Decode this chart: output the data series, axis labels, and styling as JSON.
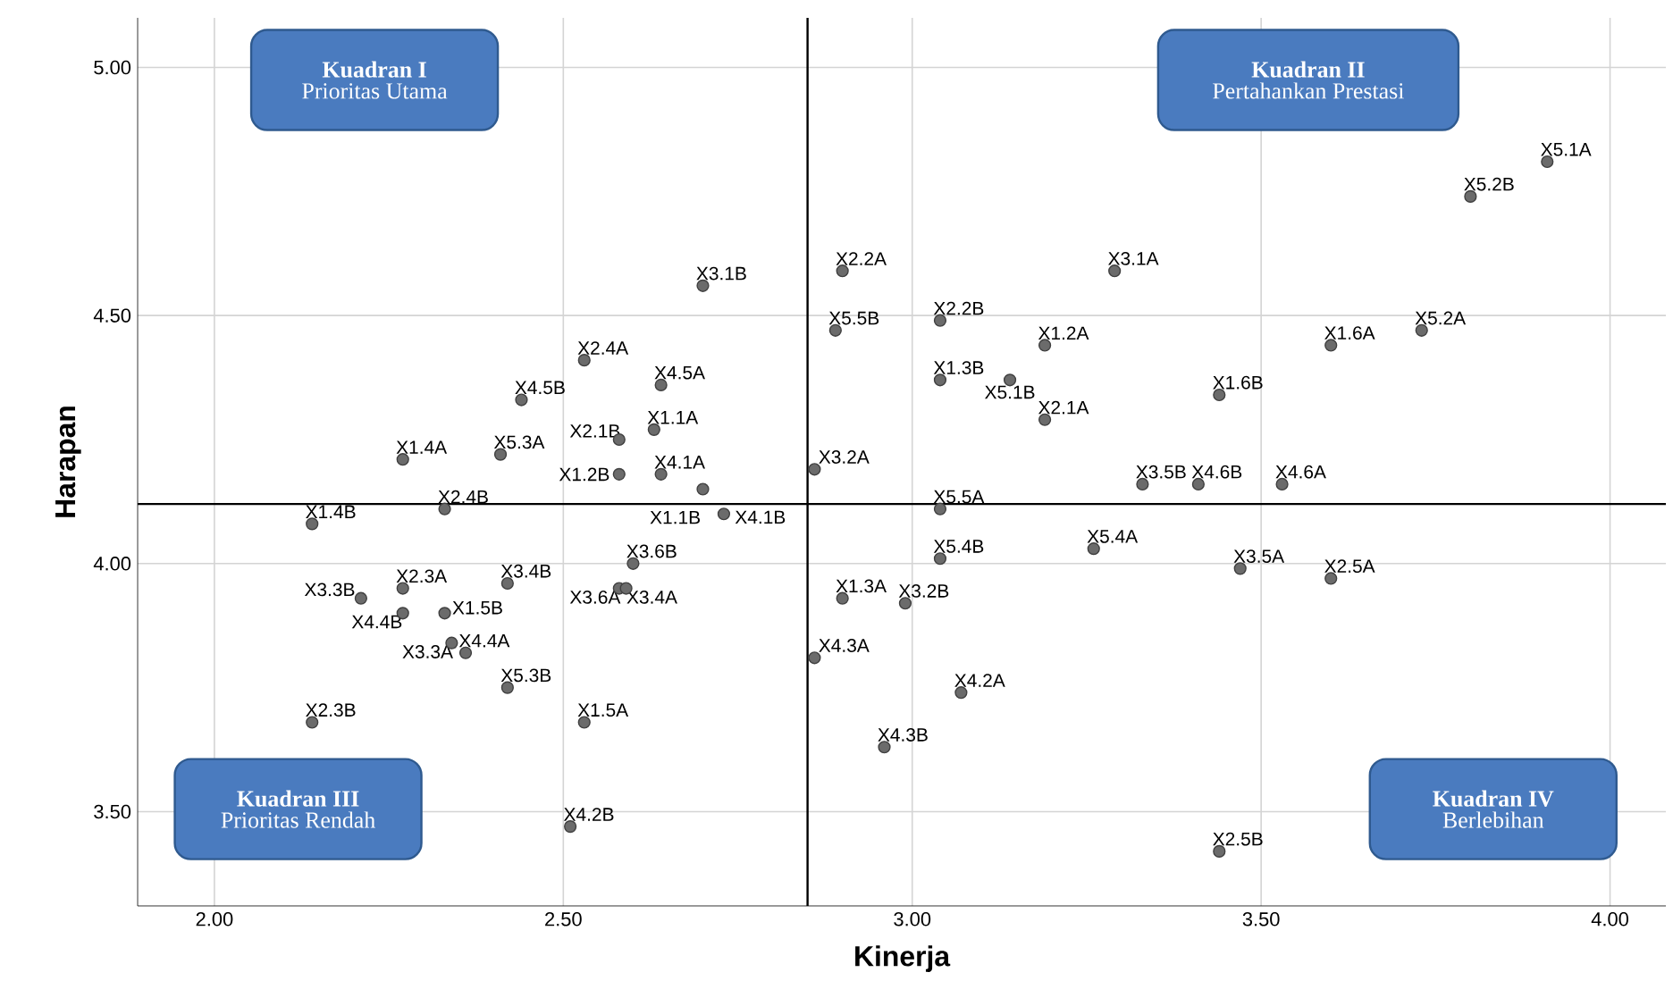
{
  "chart_data": {
    "type": "scatter",
    "xlabel": "Kinerja",
    "ylabel": "Harapan",
    "xlim": [
      1.89,
      4.08
    ],
    "ylim": [
      3.31,
      5.1
    ],
    "xticks": [
      {
        "value": 2,
        "label": "2.00"
      },
      {
        "value": 2.5,
        "label": "2.50"
      },
      {
        "value": 3,
        "label": "3.00"
      },
      {
        "value": 3.5,
        "label": "3.50"
      },
      {
        "value": 4,
        "label": "4.00"
      }
    ],
    "yticks": [
      {
        "value": 3.5,
        "label": "3.50"
      },
      {
        "value": 4,
        "label": "4.00"
      },
      {
        "value": 4.5,
        "label": "4.50"
      },
      {
        "value": 5,
        "label": "5.00"
      }
    ],
    "grid": true,
    "ref_lines": [
      {
        "axis": "x",
        "value": 2.85,
        "color": "#000000"
      },
      {
        "axis": "y",
        "value": 4.12,
        "color": "#000000"
      }
    ],
    "series": [
      {
        "color": "#6b6b6b",
        "x": [
          3.91,
          3.8,
          2.7,
          2.9,
          3.29,
          2.89,
          3.04,
          3.19,
          3.6,
          3.73,
          2.53,
          2.64,
          2.44,
          2.63,
          2.58,
          2.58,
          2.64,
          2.7,
          2.73,
          2.27,
          2.41,
          2.14,
          2.33,
          2.6,
          2.21,
          2.27,
          2.42,
          2.58,
          2.59,
          2.27,
          2.33,
          2.34,
          2.36,
          2.42,
          2.14,
          2.53,
          2.51,
          2.86,
          3.04,
          3.14,
          3.19,
          3.44,
          3.33,
          3.41,
          3.53,
          3.04,
          3.04,
          3.26,
          3.47,
          3.6,
          2.9,
          2.99,
          2.86,
          3.07,
          2.96,
          3.44
        ],
        "values": [
          4.81,
          4.74,
          4.56,
          4.59,
          4.59,
          4.47,
          4.49,
          4.44,
          4.44,
          4.47,
          4.41,
          4.36,
          4.33,
          4.27,
          4.25,
          4.18,
          4.18,
          4.15,
          4.1,
          4.21,
          4.22,
          4.08,
          4.11,
          4.0,
          3.93,
          3.95,
          3.96,
          3.95,
          3.95,
          3.9,
          3.9,
          3.84,
          3.82,
          3.75,
          3.68,
          3.68,
          3.47,
          4.19,
          4.37,
          4.37,
          4.29,
          4.34,
          4.16,
          4.16,
          4.16,
          4.11,
          4.01,
          4.03,
          3.99,
          3.97,
          3.93,
          3.92,
          3.81,
          3.74,
          3.63,
          3.42
        ]
      }
    ],
    "annotations": [
      "Kuadran I",
      "Prioritas Utama",
      "Kuadran II",
      "Pertahankan Prestasi",
      "Kuadran III",
      "Prioritas Rendah",
      "Kuadran IV",
      "Berlebihan",
      {
        "text": "X5.1A",
        "x": 3.91,
        "y": 4.81
      },
      {
        "text": "X5.2B",
        "x": 3.8,
        "y": 4.74
      },
      {
        "text": "X3.1B",
        "x": 2.7,
        "y": 4.56
      },
      {
        "text": "X2.2A",
        "x": 2.9,
        "y": 4.59
      },
      {
        "text": "X3.1A",
        "x": 3.29,
        "y": 4.59
      },
      {
        "text": "X5.5B",
        "x": 2.89,
        "y": 4.47
      },
      {
        "text": "X2.2B",
        "x": 3.04,
        "y": 4.49
      },
      {
        "text": "X1.2A",
        "x": 3.19,
        "y": 4.44
      },
      {
        "text": "X1.6A",
        "x": 3.6,
        "y": 4.44
      },
      {
        "text": "X5.2A",
        "x": 3.73,
        "y": 4.47
      },
      {
        "text": "X2.4A",
        "x": 2.53,
        "y": 4.41
      },
      {
        "text": "X4.5A",
        "x": 2.64,
        "y": 4.36
      },
      {
        "text": "X4.5B",
        "x": 2.44,
        "y": 4.33
      },
      {
        "text": "X1.1A",
        "x": 2.63,
        "y": 4.27
      },
      {
        "text": "X2.1B",
        "x": 2.58,
        "y": 4.25
      },
      {
        "text": "X1.2B",
        "x": 2.58,
        "y": 4.18
      },
      {
        "text": "X4.1A",
        "x": 2.64,
        "y": 4.18
      },
      {
        "text": "X1.1B",
        "x": 2.7,
        "y": 4.15
      },
      {
        "text": "X4.1B",
        "x": 2.73,
        "y": 4.1
      },
      {
        "text": "X1.4A",
        "x": 2.27,
        "y": 4.21
      },
      {
        "text": "X5.3A",
        "x": 2.41,
        "y": 4.22
      },
      {
        "text": "X1.4B",
        "x": 2.14,
        "y": 4.08
      },
      {
        "text": "X2.4B",
        "x": 2.33,
        "y": 4.11
      },
      {
        "text": "X3.6B",
        "x": 2.6,
        "y": 4.0
      },
      {
        "text": "X3.3B",
        "x": 2.21,
        "y": 3.93
      },
      {
        "text": "X2.3A",
        "x": 2.27,
        "y": 3.95
      },
      {
        "text": "X3.4B",
        "x": 2.42,
        "y": 3.96
      },
      {
        "text": "X3.6A",
        "x": 2.58,
        "y": 3.95
      },
      {
        "text": "X3.4A",
        "x": 2.59,
        "y": 3.95
      },
      {
        "text": "X4.4B",
        "x": 2.27,
        "y": 3.9
      },
      {
        "text": "X1.5B",
        "x": 2.33,
        "y": 3.9
      },
      {
        "text": "X3.3A",
        "x": 2.34,
        "y": 3.84
      },
      {
        "text": "X4.4A",
        "x": 2.36,
        "y": 3.82
      },
      {
        "text": "X5.3B",
        "x": 2.42,
        "y": 3.75
      },
      {
        "text": "X2.3B",
        "x": 2.14,
        "y": 3.68
      },
      {
        "text": "X1.5A",
        "x": 2.53,
        "y": 3.68
      },
      {
        "text": "X4.2B",
        "x": 2.51,
        "y": 3.47
      },
      {
        "text": "X3.2A",
        "x": 2.86,
        "y": 4.19
      },
      {
        "text": "X1.3B",
        "x": 3.04,
        "y": 4.37
      },
      {
        "text": "X5.1B",
        "x": 3.14,
        "y": 4.37
      },
      {
        "text": "X2.1A",
        "x": 3.19,
        "y": 4.29
      },
      {
        "text": "X1.6B",
        "x": 3.44,
        "y": 4.34
      },
      {
        "text": "X3.5B",
        "x": 3.33,
        "y": 4.16
      },
      {
        "text": "X4.6B",
        "x": 3.41,
        "y": 4.16
      },
      {
        "text": "X4.6A",
        "x": 3.53,
        "y": 4.16
      },
      {
        "text": "X5.5A",
        "x": 3.04,
        "y": 4.11
      },
      {
        "text": "X5.4B",
        "x": 3.04,
        "y": 4.01
      },
      {
        "text": "X5.4A",
        "x": 3.26,
        "y": 4.03
      },
      {
        "text": "X3.5A",
        "x": 3.47,
        "y": 3.99
      },
      {
        "text": "X2.5A",
        "x": 3.6,
        "y": 3.97
      },
      {
        "text": "X1.3A",
        "x": 2.9,
        "y": 3.93
      },
      {
        "text": "X3.2B",
        "x": 2.99,
        "y": 3.92
      },
      {
        "text": "X4.3A",
        "x": 2.86,
        "y": 3.81
      },
      {
        "text": "X4.2A",
        "x": 3.07,
        "y": 3.74
      },
      {
        "text": "X4.3B",
        "x": 2.96,
        "y": 3.63
      },
      {
        "text": "X2.5B",
        "x": 3.44,
        "y": 3.42
      }
    ]
  }
}
